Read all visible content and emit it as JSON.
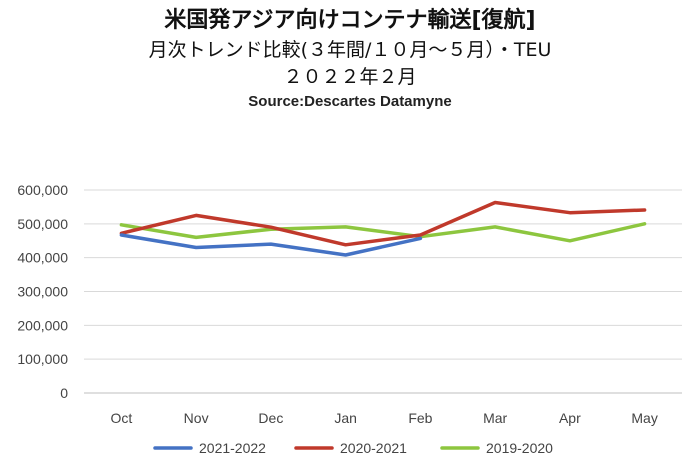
{
  "chart_data": {
    "type": "line",
    "title": "米国発アジア向けコンテナ輸送[復航]",
    "subtitle": "月次トレンド比較(３年間/１０月～５月）・TEU",
    "date_line": "２０２２年２月",
    "source": "Source:Descartes Datamyne",
    "categories": [
      "Oct",
      "Nov",
      "Dec",
      "Jan",
      "Feb",
      "Mar",
      "Apr",
      "May"
    ],
    "y_ticks": [
      "0",
      "100,000",
      "200,000",
      "300,000",
      "400,000",
      "500,000",
      "600,000"
    ],
    "ylim": [
      0,
      600000
    ],
    "grid": true,
    "legend_position": "bottom",
    "series": [
      {
        "name": "2021-2022",
        "color": "#4472C4",
        "values": [
          467000,
          430000,
          440000,
          408000,
          457000,
          null,
          null,
          null
        ]
      },
      {
        "name": "2020-2021",
        "color": "#C0392B",
        "values": [
          472000,
          525000,
          490000,
          438000,
          467000,
          563000,
          533000,
          541000
        ]
      },
      {
        "name": "2019-2020",
        "color": "#8DC63F",
        "values": [
          497000,
          460000,
          484000,
          491000,
          462000,
          491000,
          450000,
          500000
        ]
      }
    ]
  }
}
